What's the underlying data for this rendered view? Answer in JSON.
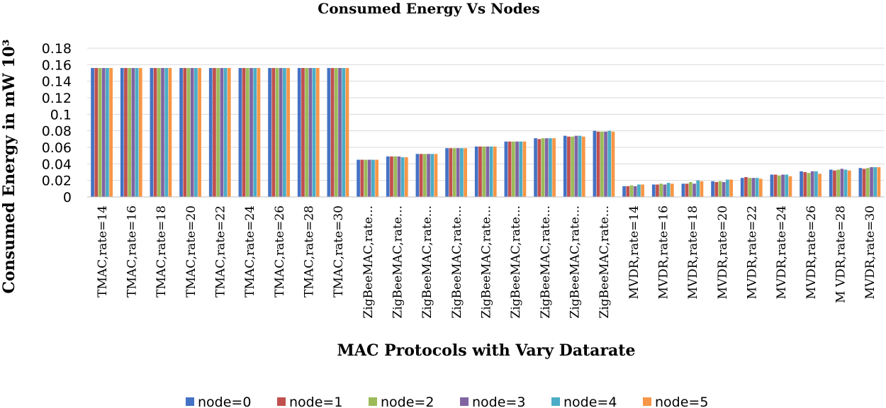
{
  "chart_data": {
    "type": "bar",
    "title": "Consumed Energy Vs Nodes",
    "xlabel": "MAC Protocols with Vary Datarate",
    "ylabel": "Consumed Energy in mW 10³",
    "ylim": [
      0,
      0.18
    ],
    "yticks": [
      "0",
      "0.02",
      "0.04",
      "0.06",
      "0.08",
      "0.1",
      "0.12",
      "0.14",
      "0.16",
      "0.18"
    ],
    "grid": true,
    "legend_position": "bottom",
    "categories": [
      "TMAC,rate=14",
      "TMAC,rate=16",
      "TMAC,rate=18",
      "TMAC,rate=20",
      "TMAC,rate=22",
      "TMAC,rate=24",
      "TMAC,rate=26",
      "TMAC,rate=28",
      "TMAC,rate=30",
      "ZigBeeMAC,rate...",
      "ZigBeeMAC,rate...",
      "ZigBeeMAC,rate...",
      "ZigBeeMAC,rate...",
      "ZigBeeMAC,rate...",
      "ZigBeeMAC,rate...",
      "ZigBeeMAC,rate...",
      "ZigBeeMAC,rate...",
      "ZigBeeMAC,rate...",
      "MVDR,rate=14",
      "MVDR,rate=16",
      "MVDR,rate=18",
      "MVDR,rate=20",
      "MVDR,rate=22",
      "MVDR,rate=24",
      "MVDR,rate=26",
      "M VDR,rate=28",
      "MVDR,rate=30"
    ],
    "series": [
      {
        "name": "node=0",
        "color": "#4472c4",
        "values": [
          0.156,
          0.156,
          0.156,
          0.156,
          0.156,
          0.156,
          0.156,
          0.156,
          0.156,
          0.045,
          0.049,
          0.052,
          0.059,
          0.061,
          0.067,
          0.071,
          0.074,
          0.08,
          0.013,
          0.015,
          0.016,
          0.019,
          0.023,
          0.027,
          0.031,
          0.033,
          0.035
        ]
      },
      {
        "name": "node=1",
        "color": "#c0504d",
        "values": [
          0.156,
          0.156,
          0.156,
          0.156,
          0.156,
          0.156,
          0.156,
          0.156,
          0.156,
          0.045,
          0.049,
          0.052,
          0.059,
          0.061,
          0.067,
          0.07,
          0.073,
          0.079,
          0.013,
          0.015,
          0.016,
          0.018,
          0.024,
          0.027,
          0.03,
          0.032,
          0.034
        ]
      },
      {
        "name": "node=2",
        "color": "#9bbb59",
        "values": [
          0.156,
          0.156,
          0.156,
          0.156,
          0.156,
          0.156,
          0.156,
          0.156,
          0.156,
          0.045,
          0.049,
          0.052,
          0.059,
          0.061,
          0.067,
          0.071,
          0.073,
          0.079,
          0.014,
          0.016,
          0.018,
          0.019,
          0.023,
          0.026,
          0.029,
          0.033,
          0.035
        ]
      },
      {
        "name": "node=3",
        "color": "#8064a2",
        "values": [
          0.156,
          0.156,
          0.156,
          0.156,
          0.156,
          0.156,
          0.156,
          0.156,
          0.156,
          0.045,
          0.049,
          0.052,
          0.059,
          0.061,
          0.067,
          0.071,
          0.074,
          0.079,
          0.013,
          0.015,
          0.016,
          0.018,
          0.023,
          0.027,
          0.031,
          0.034,
          0.036
        ]
      },
      {
        "name": "node=4",
        "color": "#4bacc6",
        "values": [
          0.156,
          0.156,
          0.156,
          0.156,
          0.156,
          0.156,
          0.156,
          0.156,
          0.156,
          0.045,
          0.048,
          0.052,
          0.059,
          0.061,
          0.067,
          0.071,
          0.074,
          0.08,
          0.015,
          0.017,
          0.02,
          0.021,
          0.023,
          0.027,
          0.031,
          0.033,
          0.036
        ]
      },
      {
        "name": "node=5",
        "color": "#f79646",
        "values": [
          0.156,
          0.156,
          0.156,
          0.156,
          0.156,
          0.156,
          0.156,
          0.156,
          0.156,
          0.045,
          0.048,
          0.052,
          0.059,
          0.061,
          0.067,
          0.071,
          0.073,
          0.079,
          0.015,
          0.016,
          0.019,
          0.021,
          0.022,
          0.025,
          0.028,
          0.032,
          0.036
        ]
      }
    ]
  }
}
